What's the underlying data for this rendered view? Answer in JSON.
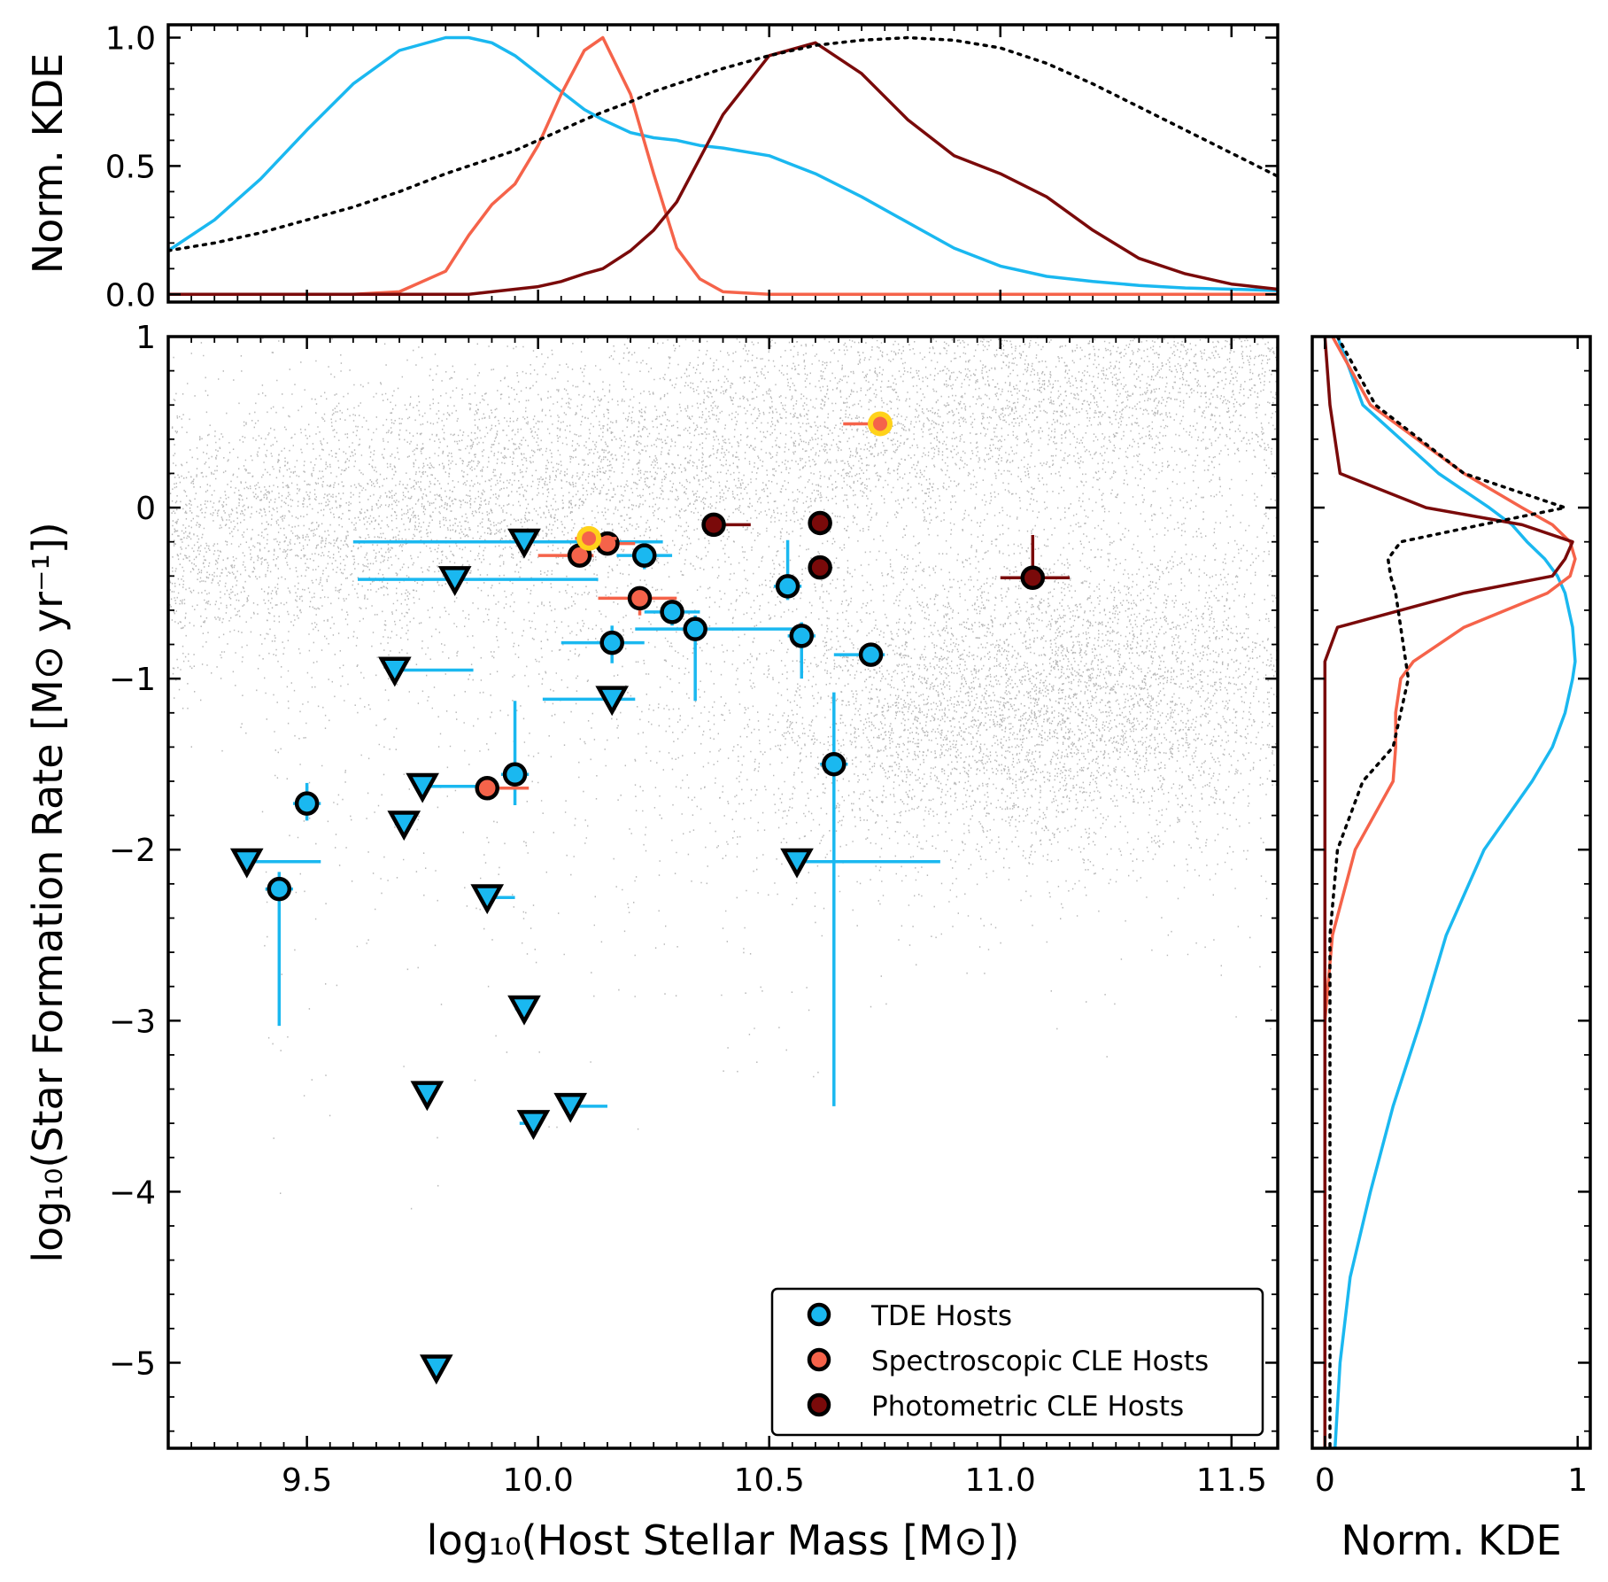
{
  "chart_data": {
    "type": "scatter",
    "main": {
      "xlabel": "log₁₀(Host Stellar Mass [M⊙])",
      "ylabel": "log₁₀(Star Formation Rate [M⊙ yr⁻¹])",
      "xlim": [
        9.2,
        11.6
      ],
      "ylim": [
        -5.5,
        1.0
      ],
      "xticks": [
        9.5,
        10.0,
        10.5,
        11.0,
        11.5
      ],
      "xtick_labels": [
        "9.5",
        "10.0",
        "10.5",
        "11.0",
        "11.5"
      ],
      "yticks": [
        1,
        0,
        -1,
        -2,
        -3,
        -4,
        -5
      ],
      "ytick_labels": [
        "1",
        "0",
        "−1",
        "−2",
        "−3",
        "−4",
        "−5"
      ],
      "background": {
        "name": "Comparison galaxy sample",
        "style": "grey density cloud",
        "components": [
          {
            "name": "star-forming sequence",
            "mass_range": [
              9.2,
              11.6
            ],
            "sfr_at_10": 0.15,
            "slope": 0.45,
            "scatter": 0.35
          },
          {
            "name": "quiescent cloud",
            "center": [
              11.1,
              -1.15
            ],
            "spread": [
              0.35,
              0.45
            ]
          }
        ]
      },
      "legend": {
        "location": "lower-right",
        "entries": [
          {
            "label": "TDE Hosts",
            "color": "#1ab8f0"
          },
          {
            "label": "Spectroscopic CLE Hosts",
            "color": "#f5634a"
          },
          {
            "label": "Photometric CLE Hosts",
            "color": "#7a0a0a"
          }
        ]
      },
      "series": [
        {
          "name": "TDE Hosts",
          "color": "#1ab8f0",
          "marker": "circle",
          "points": [
            {
              "x": 9.5,
              "y": -1.73,
              "xerr": [
                0.03,
                0.03
              ],
              "yerr": [
                0.12,
                0.1
              ]
            },
            {
              "x": 9.44,
              "y": -2.23,
              "xerr": [
                0.03,
                0.03
              ],
              "yerr": [
                0.1,
                0.8
              ]
            },
            {
              "x": 9.95,
              "y": -1.56,
              "xerr": [
                0.03,
                0.03
              ],
              "yerr": [
                0.43,
                0.18
              ]
            },
            {
              "x": 10.16,
              "y": -0.79,
              "xerr": [
                0.11,
                0.07
              ],
              "yerr": [
                0.1,
                0.12
              ]
            },
            {
              "x": 10.23,
              "y": -0.28,
              "xerr": [
                0.06,
                0.06
              ],
              "yerr": [
                0.08,
                0.08
              ]
            },
            {
              "x": 10.29,
              "y": -0.61,
              "xerr": [
                0.06,
                0.06
              ],
              "yerr": [
                0.08,
                0.08
              ]
            },
            {
              "x": 10.34,
              "y": -0.71,
              "xerr": [
                0.13,
                0.22
              ],
              "yerr": [
                0.08,
                0.42
              ]
            },
            {
              "x": 10.54,
              "y": -0.46,
              "xerr": [
                0.03,
                0.03
              ],
              "yerr": [
                0.27,
                0.08
              ]
            },
            {
              "x": 10.57,
              "y": -0.75,
              "xerr": [
                0.03,
                0.03
              ],
              "yerr": [
                0.08,
                0.25
              ]
            },
            {
              "x": 10.64,
              "y": -1.5,
              "xerr": [
                0.03,
                0.03
              ],
              "yerr": [
                0.42,
                2.0
              ]
            },
            {
              "x": 10.72,
              "y": -0.86,
              "xerr": [
                0.08,
                0.03
              ],
              "yerr": [
                0.05,
                0.05
              ]
            }
          ]
        },
        {
          "name": "TDE Hosts (upper limits)",
          "color": "#1ab8f0",
          "marker": "triangle-down",
          "points": [
            {
              "x": 9.97,
              "y": -0.2,
              "xerr": [
                0.37,
                0.3
              ]
            },
            {
              "x": 9.82,
              "y": -0.42,
              "xerr": [
                0.21,
                0.31
              ]
            },
            {
              "x": 9.69,
              "y": -0.95,
              "xerr": [
                0.0,
                0.17
              ]
            },
            {
              "x": 10.16,
              "y": -1.12,
              "xerr": [
                0.15,
                0.05
              ]
            },
            {
              "x": 9.75,
              "y": -1.63,
              "xerr": [
                0.0,
                0.13
              ]
            },
            {
              "x": 9.71,
              "y": -1.85,
              "xerr": [
                0.02,
                0.0
              ]
            },
            {
              "x": 9.37,
              "y": -2.07,
              "xerr": [
                0.0,
                0.16
              ]
            },
            {
              "x": 9.89,
              "y": -2.28,
              "xerr": [
                0.0,
                0.06
              ]
            },
            {
              "x": 10.56,
              "y": -2.07,
              "xerr": [
                0.0,
                0.31
              ]
            },
            {
              "x": 9.97,
              "y": -2.93,
              "xerr": [
                0.02,
                0.0
              ]
            },
            {
              "x": 9.76,
              "y": -3.43,
              "xerr": [
                0.0,
                0.0
              ]
            },
            {
              "x": 9.99,
              "y": -3.6,
              "xerr": [
                0.03,
                0.0
              ]
            },
            {
              "x": 10.07,
              "y": -3.5,
              "xerr": [
                0.0,
                0.08
              ]
            },
            {
              "x": 9.78,
              "y": -5.03,
              "xerr": [
                0.0,
                0.0
              ]
            }
          ]
        },
        {
          "name": "Spectroscopic CLE Hosts",
          "color": "#f5634a",
          "marker": "circle",
          "points": [
            {
              "x": 10.09,
              "y": -0.28,
              "xerr": [
                0.09,
                0.03
              ],
              "yerr": [
                0.05,
                0.05
              ]
            },
            {
              "x": 10.15,
              "y": -0.21,
              "xerr": [
                0.05,
                0.06
              ],
              "yerr": [
                0.05,
                0.05
              ]
            },
            {
              "x": 10.22,
              "y": -0.53,
              "xerr": [
                0.09,
                0.08
              ],
              "yerr": [
                0.05,
                0.1
              ]
            },
            {
              "x": 9.89,
              "y": -1.64,
              "xerr": [
                0.02,
                0.09
              ],
              "yerr": [
                0.05,
                0.05
              ]
            },
            {
              "x": 10.11,
              "y": -0.18,
              "xerr": [
                0.03,
                0.06
              ],
              "yerr": [
                0.05,
                0.05
              ],
              "highlight": "#ffd21a"
            },
            {
              "x": 10.74,
              "y": 0.49,
              "xerr": [
                0.08,
                0.0
              ],
              "yerr": [
                0.0,
                0.0
              ],
              "highlight": "#ffd21a"
            }
          ]
        },
        {
          "name": "Photometric CLE Hosts",
          "color": "#7a0a0a",
          "marker": "circle",
          "points": [
            {
              "x": 10.38,
              "y": -0.1,
              "xerr": [
                0.02,
                0.08
              ],
              "yerr": [
                0.0,
                0.0
              ]
            },
            {
              "x": 10.61,
              "y": -0.09,
              "xerr": [
                0.0,
                0.0
              ],
              "yerr": [
                0.0,
                0.0
              ]
            },
            {
              "x": 10.61,
              "y": -0.35,
              "xerr": [
                0.0,
                0.0
              ],
              "yerr": [
                0.0,
                0.0
              ]
            },
            {
              "x": 11.07,
              "y": -0.41,
              "xerr": [
                0.07,
                0.08
              ],
              "yerr": [
                0.25,
                0.0
              ]
            }
          ]
        }
      ]
    },
    "top_panel": {
      "ylabel": "Norm. KDE",
      "ylim": [
        -0.03,
        1.05
      ],
      "yticks": [
        0.0,
        0.5,
        1.0
      ],
      "ytick_labels": [
        "0.0",
        "0.5",
        "1.0"
      ],
      "x": [
        9.2,
        9.3,
        9.4,
        9.5,
        9.6,
        9.7,
        9.8,
        9.85,
        9.9,
        9.95,
        10.0,
        10.05,
        10.1,
        10.14,
        10.2,
        10.25,
        10.3,
        10.35,
        10.4,
        10.5,
        10.6,
        10.7,
        10.8,
        10.9,
        11.0,
        11.1,
        11.2,
        11.3,
        11.4,
        11.5,
        11.6
      ],
      "series": [
        {
          "name": "TDE Hosts",
          "color": "#1ab8f0",
          "style": "solid",
          "values": [
            0.17,
            0.29,
            0.45,
            0.64,
            0.82,
            0.95,
            1.0,
            1.0,
            0.98,
            0.93,
            0.86,
            0.79,
            0.72,
            0.68,
            0.63,
            0.61,
            0.6,
            0.58,
            0.57,
            0.54,
            0.47,
            0.38,
            0.28,
            0.18,
            0.11,
            0.07,
            0.05,
            0.035,
            0.025,
            0.02,
            0.015
          ]
        },
        {
          "name": "Spectroscopic CLE Hosts",
          "color": "#f5634a",
          "style": "solid",
          "values": [
            0.0,
            0.0,
            0.0,
            0.0,
            0.0,
            0.01,
            0.09,
            0.23,
            0.35,
            0.43,
            0.58,
            0.78,
            0.95,
            1.0,
            0.78,
            0.47,
            0.18,
            0.06,
            0.01,
            0.0,
            0.0,
            0.0,
            0.0,
            0.0,
            0.0,
            0.0,
            0.0,
            0.0,
            0.0,
            0.0,
            0.0
          ]
        },
        {
          "name": "Photometric CLE Hosts",
          "color": "#7a0a0a",
          "style": "solid",
          "values": [
            0.0,
            0.0,
            0.0,
            0.0,
            0.0,
            0.0,
            0.0,
            0.0,
            0.01,
            0.02,
            0.03,
            0.05,
            0.08,
            0.1,
            0.17,
            0.25,
            0.36,
            0.53,
            0.7,
            0.93,
            0.98,
            0.86,
            0.68,
            0.54,
            0.47,
            0.38,
            0.25,
            0.14,
            0.08,
            0.04,
            0.02
          ]
        },
        {
          "name": "Comparison galaxy sample",
          "color": "#000000",
          "style": "dotted",
          "values": [
            0.17,
            0.2,
            0.24,
            0.29,
            0.34,
            0.4,
            0.47,
            0.5,
            0.53,
            0.56,
            0.6,
            0.64,
            0.68,
            0.71,
            0.75,
            0.79,
            0.82,
            0.85,
            0.88,
            0.93,
            0.97,
            0.99,
            1.0,
            0.99,
            0.96,
            0.9,
            0.82,
            0.73,
            0.64,
            0.55,
            0.46
          ]
        }
      ]
    },
    "right_panel": {
      "xlabel": "Norm. KDE",
      "xlim": [
        -0.05,
        1.05
      ],
      "xticks": [
        0,
        1
      ],
      "xtick_labels": [
        "0",
        "1"
      ],
      "y": [
        1.0,
        0.6,
        0.2,
        0.0,
        -0.1,
        -0.2,
        -0.3,
        -0.4,
        -0.5,
        -0.7,
        -0.9,
        -1.0,
        -1.2,
        -1.4,
        -1.6,
        -2.0,
        -2.5,
        -3.0,
        -3.5,
        -4.0,
        -4.5,
        -5.0,
        -5.5
      ],
      "series": [
        {
          "name": "TDE Hosts",
          "color": "#1ab8f0",
          "style": "solid",
          "values": [
            0.05,
            0.15,
            0.45,
            0.65,
            0.74,
            0.8,
            0.87,
            0.92,
            0.95,
            0.98,
            0.99,
            0.98,
            0.95,
            0.9,
            0.82,
            0.63,
            0.48,
            0.38,
            0.27,
            0.18,
            0.1,
            0.06,
            0.04
          ]
        },
        {
          "name": "Spectroscopic CLE Hosts",
          "color": "#f5634a",
          "style": "solid",
          "values": [
            0.03,
            0.18,
            0.55,
            0.78,
            0.9,
            0.97,
            0.99,
            0.97,
            0.88,
            0.55,
            0.35,
            0.3,
            0.28,
            0.28,
            0.27,
            0.12,
            0.03,
            0.0,
            0.0,
            0.0,
            0.0,
            0.0,
            0.0
          ]
        },
        {
          "name": "Photometric CLE Hosts",
          "color": "#7a0a0a",
          "style": "solid",
          "values": [
            0.0,
            0.02,
            0.06,
            0.4,
            0.78,
            0.98,
            0.95,
            0.9,
            0.55,
            0.05,
            0.0,
            0.0,
            0.0,
            0.0,
            0.0,
            0.0,
            0.0,
            0.0,
            0.0,
            0.0,
            0.0,
            0.0,
            0.0
          ]
        },
        {
          "name": "Comparison galaxy sample",
          "color": "#000000",
          "style": "dotted",
          "values": [
            0.05,
            0.2,
            0.55,
            0.95,
            0.62,
            0.3,
            0.25,
            0.26,
            0.28,
            0.3,
            0.32,
            0.33,
            0.3,
            0.27,
            0.15,
            0.05,
            0.02,
            0.02,
            0.02,
            0.02,
            0.02,
            0.02,
            0.02
          ]
        }
      ]
    }
  }
}
